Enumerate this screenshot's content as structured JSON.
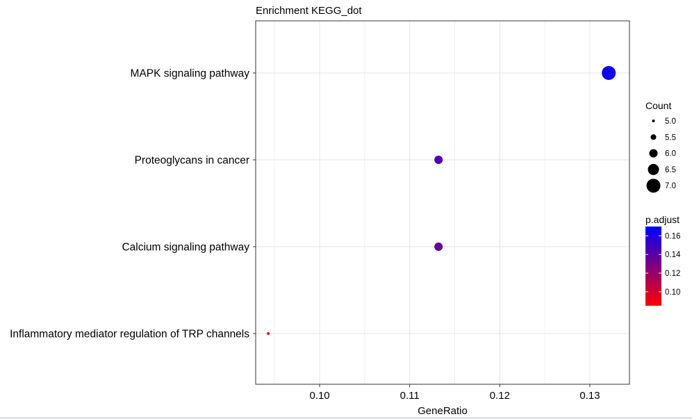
{
  "chart_data": {
    "type": "scatter",
    "title": "Enrichment KEGG_dot",
    "xlabel": "GeneRatio",
    "ylabel": "",
    "xlim": [
      0.0929,
      0.1344
    ],
    "xticks": [
      0.1,
      0.11,
      0.12,
      0.13
    ],
    "xtick_labels": [
      "0.10",
      "0.11",
      "0.12",
      "0.13"
    ],
    "grid": true,
    "categories": [
      "MAPK signaling pathway",
      "Proteoglycans in cancer",
      "Calcium signaling pathway",
      "Inflammatory mediator regulation of TRP channels"
    ],
    "points": [
      {
        "term": "MAPK signaling pathway",
        "gene_ratio": 0.1321,
        "count": 7,
        "p_adjust": 0.165
      },
      {
        "term": "Proteoglycans in cancer",
        "gene_ratio": 0.1132,
        "count": 6,
        "p_adjust": 0.145
      },
      {
        "term": "Calcium signaling pathway",
        "gene_ratio": 0.1132,
        "count": 6,
        "p_adjust": 0.135
      },
      {
        "term": "Inflammatory mediator regulation of TRP channels",
        "gene_ratio": 0.0943,
        "count": 5,
        "p_adjust": 0.095
      }
    ],
    "size_legend": {
      "title": "Count",
      "values": [
        5.0,
        5.5,
        6.0,
        6.5,
        7.0
      ],
      "labels": [
        "5.0",
        "5.5",
        "6.0",
        "6.5",
        "7.0"
      ]
    },
    "color_legend": {
      "title": "p.adjust",
      "range": [
        0.085,
        0.17
      ],
      "ticks": [
        0.16,
        0.14,
        0.12,
        0.1
      ],
      "tick_labels": [
        "0.16",
        "0.14",
        "0.12",
        "0.10"
      ],
      "low_color": "#ff0000",
      "high_color": "#0000ff"
    },
    "legend_position": "right"
  }
}
